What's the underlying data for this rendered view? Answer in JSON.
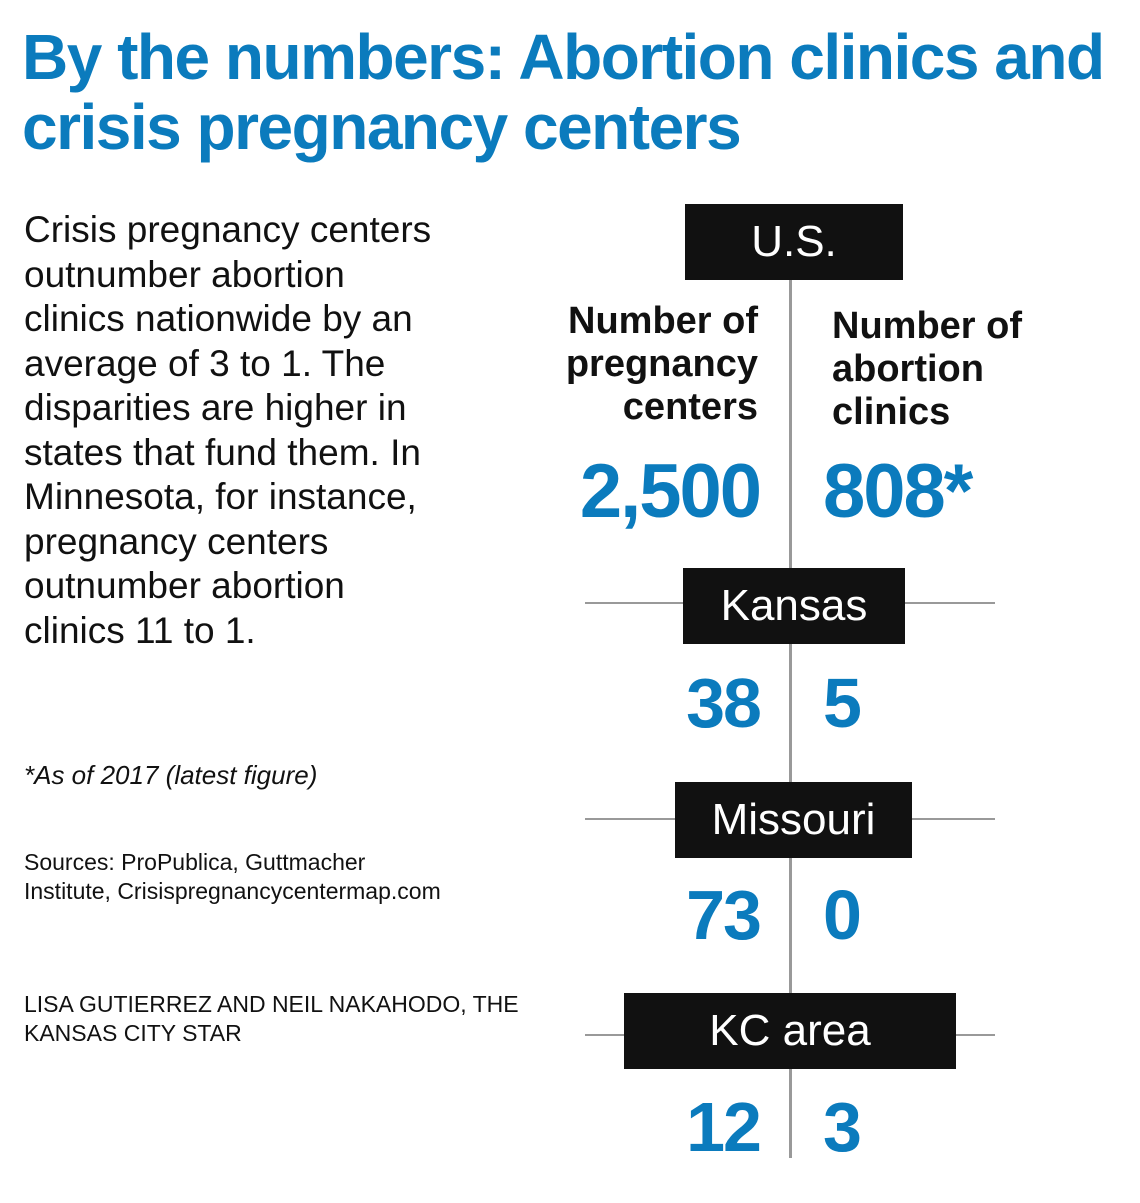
{
  "title": "By the numbers: Abortion clinics and crisis pregnancy centers",
  "intro": "Crisis pregnancy centers outnumber abortion clinics nationwide by an average of 3 to 1. The disparities are higher in states that fund them. In Minnesota, for instance, pregnancy centers outnumber abortion clinics 11 to 1.",
  "footnote": "*As of 2017 (latest figure)",
  "sources": "Sources: ProPublica, Guttmacher Institute, Crisispregnancycentermap.com",
  "credit": "LISA GUTIERREZ AND NEIL NAKAHODO, THE KANSAS CITY STAR",
  "colors": {
    "accent": "#0b7bbd",
    "box": "#111111",
    "rule": "#999999"
  },
  "chart_data": {
    "type": "table",
    "columns": [
      "Number of pregnancy centers",
      "Number of abortion clinics"
    ],
    "rows": [
      {
        "region": "U.S.",
        "pregnancy_centers": 2500,
        "abortion_clinics": 808,
        "pregnancy_centers_label": "2,500",
        "abortion_clinics_label": "808*"
      },
      {
        "region": "Kansas",
        "pregnancy_centers": 38,
        "abortion_clinics": 5,
        "pregnancy_centers_label": "38",
        "abortion_clinics_label": "5"
      },
      {
        "region": "Missouri",
        "pregnancy_centers": 73,
        "abortion_clinics": 0,
        "pregnancy_centers_label": "73",
        "abortion_clinics_label": "0"
      },
      {
        "region": "KC area",
        "pregnancy_centers": 12,
        "abortion_clinics": 3,
        "pregnancy_centers_label": "12",
        "abortion_clinics_label": "3"
      }
    ]
  }
}
